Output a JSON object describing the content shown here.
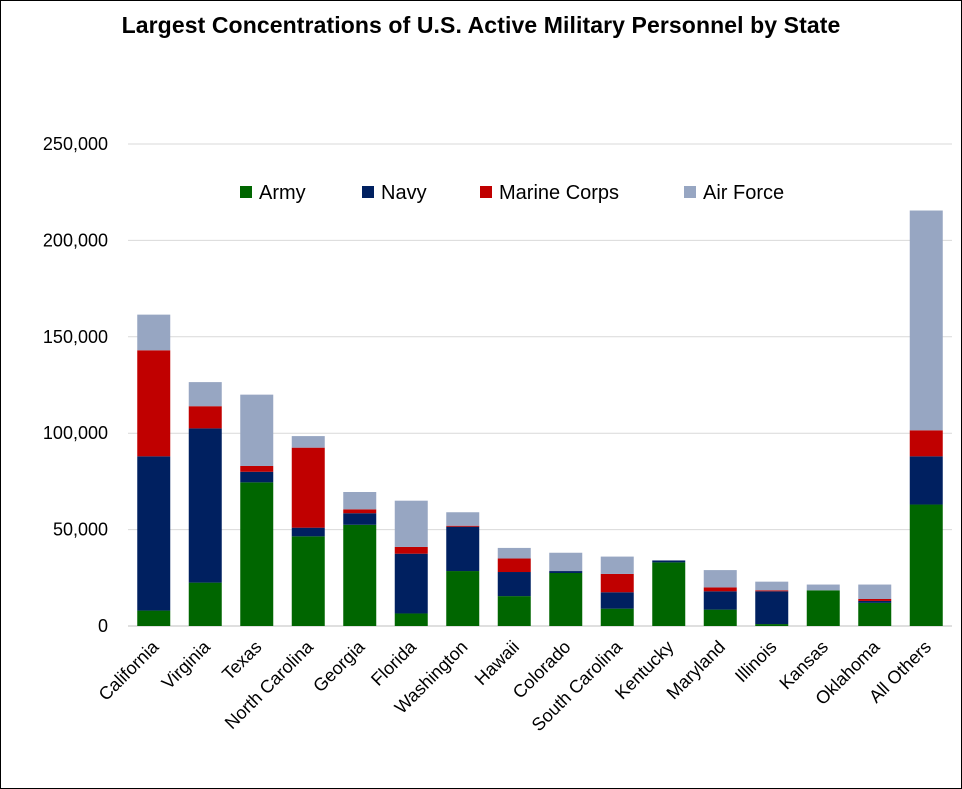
{
  "chart_data": {
    "type": "bar",
    "stacked": true,
    "title": "Largest Concentrations of U.S. Active Military Personnel by State",
    "xlabel": "",
    "ylabel": "",
    "ylim": [
      0,
      250000
    ],
    "yticks": [
      0,
      50000,
      100000,
      150000,
      200000,
      250000
    ],
    "ytick_labels": [
      "0",
      "50,000",
      "100,000",
      "150,000",
      "200,000",
      "250,000"
    ],
    "grid": true,
    "legend_position": "top-center",
    "categories": [
      "California",
      "Virginia",
      "Texas",
      "North Carolina",
      "Georgia",
      "Florida",
      "Washington",
      "Hawaii",
      "Colorado",
      "South Carolina",
      "Kentucky",
      "Maryland",
      "Illinois",
      "Kansas",
      "Oklahoma",
      "All Others"
    ],
    "series": [
      {
        "name": "Army",
        "color": "#006600",
        "values": [
          8000,
          22500,
          74500,
          46500,
          52500,
          6500,
          28500,
          15500,
          27500,
          9000,
          33000,
          8500,
          1000,
          18500,
          12000,
          63000
        ]
      },
      {
        "name": "Navy",
        "color": "#002060",
        "values": [
          80000,
          80000,
          5500,
          4500,
          6000,
          31000,
          23000,
          12500,
          1000,
          8500,
          1000,
          9500,
          17000,
          0,
          1000,
          25000
        ]
      },
      {
        "name": "Marine Corps",
        "color": "#C00000",
        "values": [
          55000,
          11500,
          3000,
          41500,
          2000,
          3500,
          500,
          7000,
          0,
          9500,
          0,
          2000,
          500,
          0,
          1000,
          13500
        ]
      },
      {
        "name": "Air Force",
        "color": "#97A6C2",
        "values": [
          18500,
          12500,
          37000,
          6000,
          9000,
          24000,
          7000,
          5500,
          9500,
          9000,
          0,
          9000,
          4500,
          3000,
          7500,
          114000
        ]
      }
    ]
  }
}
